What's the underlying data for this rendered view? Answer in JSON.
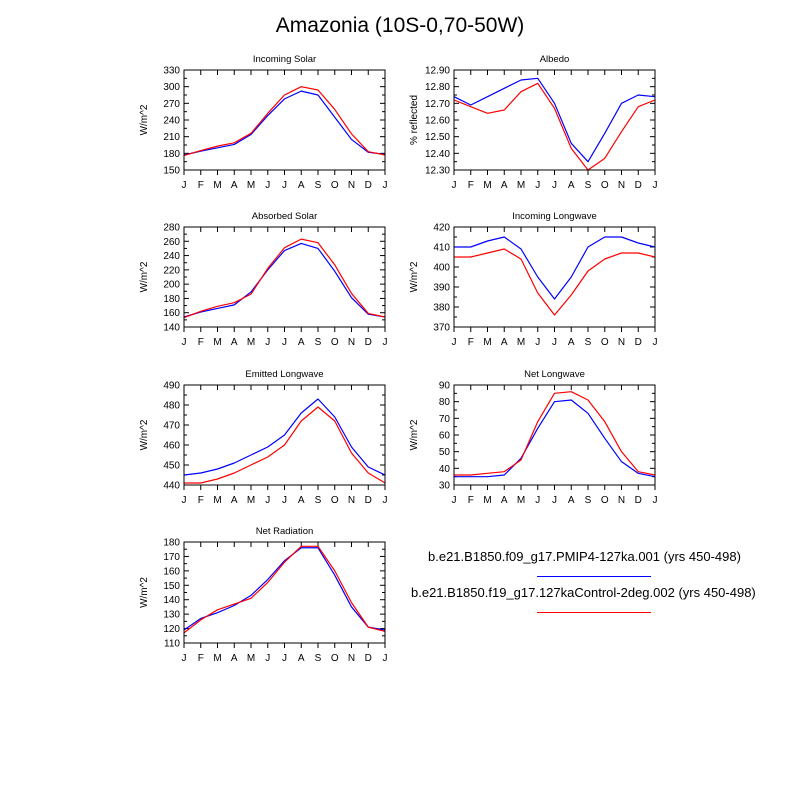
{
  "title": "Amazonia (10S-0,70-50W)",
  "colors": {
    "series1": "#0000ff",
    "series2": "#ff0000"
  },
  "legend": {
    "series1": "b.e21.B1850.f09_g17.PMIP4-127ka.001 (yrs 450-498)",
    "series2": "b.e21.B1850.f19_g17.127kaControl-2deg.002 (yrs 450-498)"
  },
  "chart_data": [
    {
      "type": "line",
      "title": "Incoming Solar",
      "ylabel": "W/m^2",
      "categories": [
        "J",
        "F",
        "M",
        "A",
        "M",
        "J",
        "J",
        "A",
        "S",
        "O",
        "N",
        "D",
        "J"
      ],
      "ylim": [
        150,
        330
      ],
      "yticks": [
        150,
        180,
        210,
        240,
        270,
        300,
        330
      ],
      "yticklabels": [
        "150",
        "180",
        "210",
        "240",
        "270",
        "300",
        "330"
      ],
      "series": [
        {
          "name": "b.e21.B1850.f09_g17.PMIP4-127ka.001 (yrs 450-498)",
          "values": [
            177,
            184,
            190,
            196,
            214,
            248,
            278,
            292,
            285,
            245,
            205,
            182,
            178
          ]
        },
        {
          "name": "b.e21.B1850.f19_g17.127kaControl-2deg.002 (yrs 450-498)",
          "values": [
            176,
            185,
            193,
            199,
            216,
            252,
            285,
            300,
            294,
            259,
            215,
            183,
            177
          ]
        }
      ]
    },
    {
      "type": "line",
      "title": "Albedo",
      "ylabel": "% reflected",
      "categories": [
        "J",
        "F",
        "M",
        "A",
        "M",
        "J",
        "J",
        "A",
        "S",
        "O",
        "N",
        "D",
        "J"
      ],
      "ylim": [
        12.3,
        12.9
      ],
      "yticks": [
        12.3,
        12.4,
        12.5,
        12.6,
        12.7,
        12.8,
        12.9
      ],
      "yticklabels": [
        "12.30",
        "12.40",
        "12.50",
        "12.60",
        "12.70",
        "12.80",
        "12.90"
      ],
      "series": [
        {
          "name": "b.e21.B1850.f09_g17.PMIP4-127ka.001 (yrs 450-498)",
          "values": [
            12.74,
            12.69,
            12.74,
            12.79,
            12.84,
            12.85,
            12.7,
            12.46,
            12.35,
            12.52,
            12.7,
            12.75,
            12.74
          ]
        },
        {
          "name": "b.e21.B1850.f19_g17.127kaControl-2deg.002 (yrs 450-498)",
          "values": [
            12.72,
            12.68,
            12.64,
            12.66,
            12.77,
            12.82,
            12.67,
            12.43,
            12.3,
            12.37,
            12.53,
            12.68,
            12.72
          ]
        }
      ]
    },
    {
      "type": "line",
      "title": "Absorbed Solar",
      "ylabel": "W/m^2",
      "categories": [
        "J",
        "F",
        "M",
        "A",
        "M",
        "J",
        "J",
        "A",
        "S",
        "O",
        "N",
        "D",
        "J"
      ],
      "ylim": [
        140,
        280
      ],
      "yticks": [
        140,
        160,
        180,
        200,
        220,
        240,
        260,
        280
      ],
      "yticklabels": [
        "140",
        "160",
        "180",
        "200",
        "220",
        "240",
        "260",
        "280"
      ],
      "series": [
        {
          "name": "b.e21.B1850.f09_g17.PMIP4-127ka.001 (yrs 450-498)",
          "values": [
            154,
            161,
            166,
            171,
            189,
            220,
            247,
            257,
            250,
            218,
            181,
            158,
            154
          ]
        },
        {
          "name": "b.e21.B1850.f19_g17.127kaControl-2deg.002 (yrs 450-498)",
          "values": [
            153,
            162,
            169,
            174,
            186,
            222,
            251,
            263,
            258,
            227,
            187,
            159,
            154
          ]
        }
      ]
    },
    {
      "type": "line",
      "title": "Incoming Longwave",
      "ylabel": "W/m^2",
      "categories": [
        "J",
        "F",
        "M",
        "A",
        "M",
        "J",
        "J",
        "A",
        "S",
        "O",
        "N",
        "D",
        "J"
      ],
      "ylim": [
        370,
        420
      ],
      "yticks": [
        370,
        380,
        390,
        400,
        410,
        420
      ],
      "yticklabels": [
        "370",
        "380",
        "390",
        "400",
        "410",
        "420"
      ],
      "series": [
        {
          "name": "b.e21.B1850.f09_g17.PMIP4-127ka.001 (yrs 450-498)",
          "values": [
            410,
            410,
            413,
            415,
            409,
            395,
            384,
            395,
            410,
            415,
            415,
            412,
            410
          ]
        },
        {
          "name": "b.e21.B1850.f19_g17.127kaControl-2deg.002 (yrs 450-498)",
          "values": [
            405,
            405,
            407,
            409,
            404,
            387,
            376,
            386,
            398,
            404,
            407,
            407,
            405
          ]
        }
      ]
    },
    {
      "type": "line",
      "title": "Emitted Longwave",
      "ylabel": "W/m^2",
      "categories": [
        "J",
        "F",
        "M",
        "A",
        "M",
        "J",
        "J",
        "A",
        "S",
        "O",
        "N",
        "D",
        "J"
      ],
      "ylim": [
        440,
        490
      ],
      "yticks": [
        440,
        450,
        460,
        470,
        480,
        490
      ],
      "yticklabels": [
        "440",
        "450",
        "460",
        "470",
        "480",
        "490"
      ],
      "series": [
        {
          "name": "b.e21.B1850.f09_g17.PMIP4-127ka.001 (yrs 450-498)",
          "values": [
            445,
            446,
            448,
            451,
            455,
            459,
            465,
            476,
            483,
            474,
            459,
            449,
            445
          ]
        },
        {
          "name": "b.e21.B1850.f19_g17.127kaControl-2deg.002 (yrs 450-498)",
          "values": [
            441,
            441,
            443,
            446,
            450,
            454,
            460,
            472,
            479,
            472,
            456,
            446,
            441
          ]
        }
      ]
    },
    {
      "type": "line",
      "title": "Net Longwave",
      "ylabel": "W/m^2",
      "categories": [
        "J",
        "F",
        "M",
        "A",
        "M",
        "J",
        "J",
        "A",
        "S",
        "O",
        "N",
        "D",
        "J"
      ],
      "ylim": [
        30,
        90
      ],
      "yticks": [
        30,
        40,
        50,
        60,
        70,
        80,
        90
      ],
      "yticklabels": [
        "30",
        "40",
        "50",
        "60",
        "70",
        "80",
        "90"
      ],
      "series": [
        {
          "name": "b.e21.B1850.f09_g17.PMIP4-127ka.001 (yrs 450-498)",
          "values": [
            35,
            35,
            35,
            36,
            46,
            64,
            80,
            81,
            73,
            58,
            44,
            37,
            35
          ]
        },
        {
          "name": "b.e21.B1850.f19_g17.127kaControl-2deg.002 (yrs 450-498)",
          "values": [
            36,
            36,
            37,
            38,
            45,
            68,
            85,
            86,
            81,
            68,
            50,
            38,
            36
          ]
        }
      ]
    },
    {
      "type": "line",
      "title": "Net Radiation",
      "ylabel": "W/m^2",
      "categories": [
        "J",
        "F",
        "M",
        "A",
        "M",
        "J",
        "J",
        "A",
        "S",
        "O",
        "N",
        "D",
        "J"
      ],
      "ylim": [
        110,
        180
      ],
      "yticks": [
        110,
        120,
        130,
        140,
        150,
        160,
        170,
        180
      ],
      "yticklabels": [
        "110",
        "120",
        "130",
        "140",
        "150",
        "160",
        "170",
        "180"
      ],
      "series": [
        {
          "name": "b.e21.B1850.f09_g17.PMIP4-127ka.001 (yrs 450-498)",
          "values": [
            119,
            127,
            131,
            136,
            143,
            154,
            167,
            176,
            176,
            157,
            135,
            121,
            119
          ]
        },
        {
          "name": "b.e21.B1850.f19_g17.127kaControl-2deg.002 (yrs 450-498)",
          "values": [
            117,
            126,
            133,
            137,
            141,
            152,
            166,
            177,
            177,
            160,
            138,
            121,
            118
          ]
        }
      ]
    }
  ]
}
